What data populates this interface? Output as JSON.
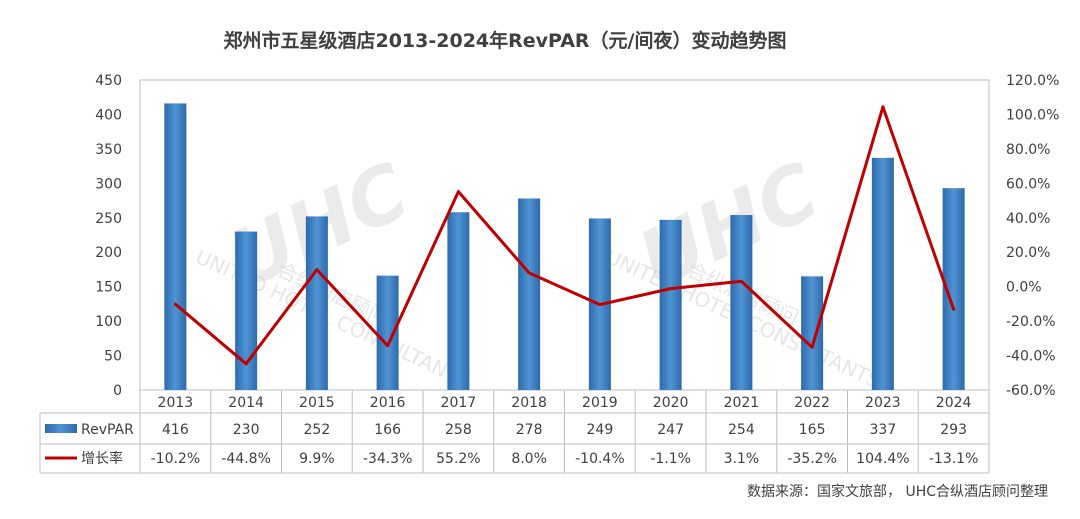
{
  "chart_data": {
    "type": "bar+line",
    "title": "郑州市五星级酒店2013-2024年RevPAR（元/间夜）变动趋势图",
    "categories": [
      "2013",
      "2014",
      "2015",
      "2016",
      "2017",
      "2018",
      "2019",
      "2020",
      "2021",
      "2022",
      "2023",
      "2024"
    ],
    "series": [
      {
        "name": "RevPAR",
        "kind": "bar",
        "axis": "left",
        "values": [
          416,
          230,
          252,
          166,
          258,
          278,
          249,
          247,
          254,
          165,
          337,
          293
        ],
        "labels": [
          "416",
          "230",
          "252",
          "166",
          "258",
          "278",
          "249",
          "247",
          "254",
          "165",
          "337",
          "293"
        ]
      },
      {
        "name": "增长率",
        "kind": "line",
        "axis": "right",
        "values": [
          -10.2,
          -44.8,
          9.9,
          -34.3,
          55.2,
          8.0,
          -10.4,
          -1.1,
          3.1,
          -35.2,
          104.4,
          -13.1
        ],
        "labels": [
          "-10.2%",
          "-44.8%",
          "9.9%",
          "-34.3%",
          "55.2%",
          "8.0%",
          "-10.4%",
          "-1.1%",
          "3.1%",
          "-35.2%",
          "104.4%",
          "-13.1%"
        ]
      }
    ],
    "y_left": {
      "min": 0,
      "max": 450,
      "step": 50,
      "ticks": [
        "0",
        "50",
        "100",
        "150",
        "200",
        "250",
        "300",
        "350",
        "400",
        "450"
      ]
    },
    "y_right": {
      "min": -60,
      "max": 120,
      "step": 20,
      "ticks": [
        "-60.0%",
        "-40.0%",
        "-20.0%",
        "0.0%",
        "20.0%",
        "40.0%",
        "60.0%",
        "80.0%",
        "100.0%",
        "120.0%"
      ]
    },
    "grid": false,
    "data_table": true,
    "source": "数据来源：国家文旅部，  UHC合纵酒店顾问整理",
    "watermark": {
      "logo": "UHC",
      "lines": [
        "合纵酒店顾问",
        "UNITED HOTEL CONSULTANTS"
      ]
    },
    "colors": {
      "bar": "#2E75B6",
      "bar_light": "#5B9BD5",
      "line": "#C00000"
    }
  }
}
